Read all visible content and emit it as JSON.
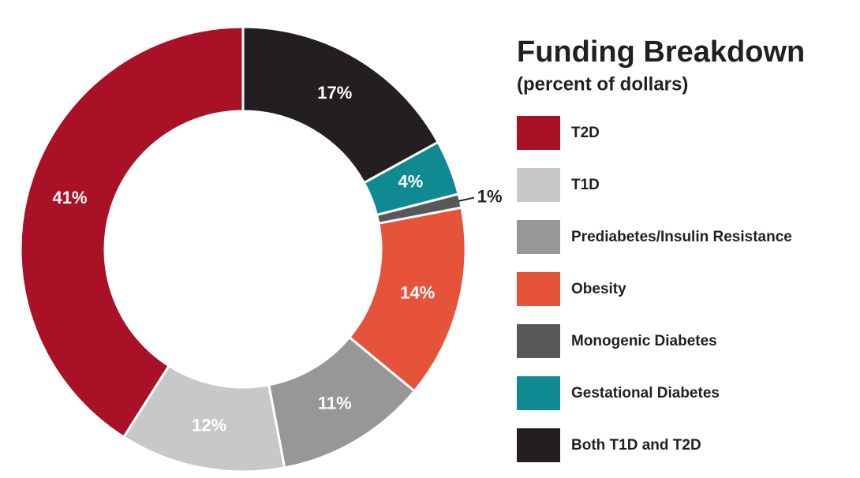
{
  "chart_data": {
    "type": "donut",
    "title": "Funding Breakdown",
    "subtitle": "(percent of dollars)",
    "categories": [
      "T2D",
      "T1D",
      "Prediabetes/Insulin Resistance",
      "Obesity",
      "Monogenic Diabetes",
      "Gestational Diabetes",
      "Both T1D and T2D"
    ],
    "values": [
      41,
      12,
      11,
      14,
      1,
      4,
      17
    ],
    "value_labels": [
      "41%",
      "12%",
      "11%",
      "14%",
      "1%",
      "4%",
      "17%"
    ],
    "colors": [
      "#a91127",
      "#c8c8c9",
      "#979798",
      "#e5533b",
      "#58585a",
      "#0f8a93",
      "#231f20"
    ]
  }
}
